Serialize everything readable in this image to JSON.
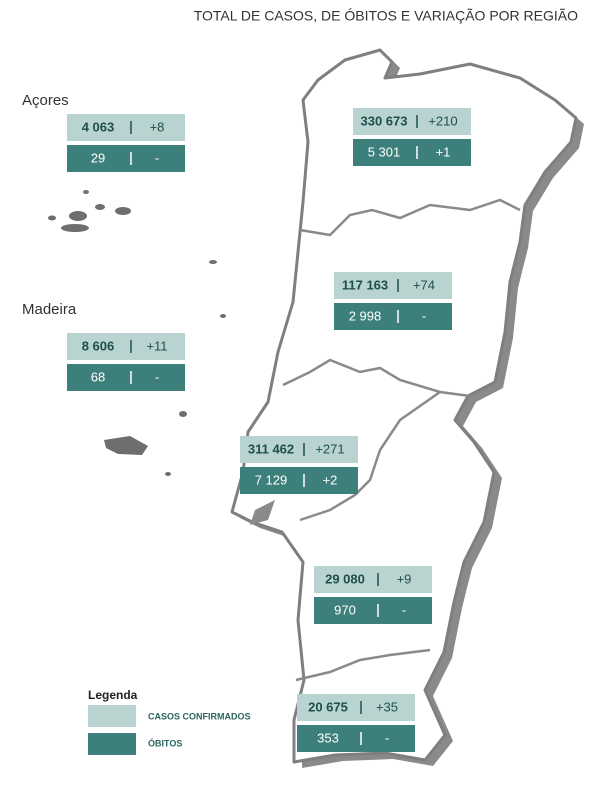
{
  "title": "TOTAL DE CASOS, DE ÓBITOS E VARIAÇÃO POR REGIÃO",
  "islands": [
    {
      "label": "Açores",
      "cases": "4 063",
      "cases_change": "+8",
      "deaths": "29",
      "deaths_change": "-"
    },
    {
      "label": "Madeira",
      "cases": "8 606",
      "cases_change": "+11",
      "deaths": "68",
      "deaths_change": "-"
    }
  ],
  "mainland": [
    {
      "cases": "330 673",
      "cases_change": "+210",
      "deaths": "5 301",
      "deaths_change": "+1"
    },
    {
      "cases": "117 163",
      "cases_change": "+74",
      "deaths": "2 998",
      "deaths_change": "-"
    },
    {
      "cases": "311 462",
      "cases_change": "+271",
      "deaths": "7 129",
      "deaths_change": "+2"
    },
    {
      "cases": "29 080",
      "cases_change": "+9",
      "deaths": "970",
      "deaths_change": "-"
    },
    {
      "cases": "20 675",
      "cases_change": "+35",
      "deaths": "353",
      "deaths_change": "-"
    }
  ],
  "legend": {
    "title": "Legenda",
    "items": [
      "CASOS CONFIRMADOS",
      "ÓBITOS"
    ]
  }
}
